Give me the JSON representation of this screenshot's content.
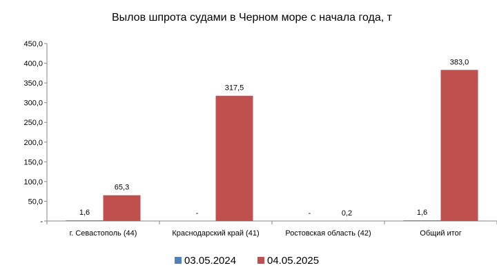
{
  "chart_data": {
    "type": "bar",
    "title": "Вылов шпрота судами в Черном море с начала  года, т",
    "xlabel": "",
    "ylabel": "",
    "ylim": [
      0,
      450
    ],
    "yticks": [
      0,
      50,
      100,
      150,
      200,
      250,
      300,
      350,
      400,
      450
    ],
    "ytick_labels": [
      "-",
      "50,0",
      "100,0",
      "150,0",
      "200,0",
      "250,0",
      "300,0",
      "350,0",
      "400,0",
      "450,0"
    ],
    "categories": [
      "г. Севастополь (44)",
      "Краснодарский край (41)",
      "Ростовская область (42)",
      "Общий итог"
    ],
    "series": [
      {
        "name": "03.05.2024",
        "color": "#4F81BD",
        "values": [
          1.6,
          null,
          null,
          1.6
        ],
        "labels": [
          "1,6",
          "-",
          "-",
          "1,6"
        ]
      },
      {
        "name": "04.05.2025",
        "color": "#C0504D",
        "values": [
          65.3,
          317.5,
          0.2,
          383.0
        ],
        "labels": [
          "65,3",
          "317,5",
          "0,2",
          "383,0"
        ]
      }
    ],
    "grid": false,
    "legend_position": "bottom"
  }
}
